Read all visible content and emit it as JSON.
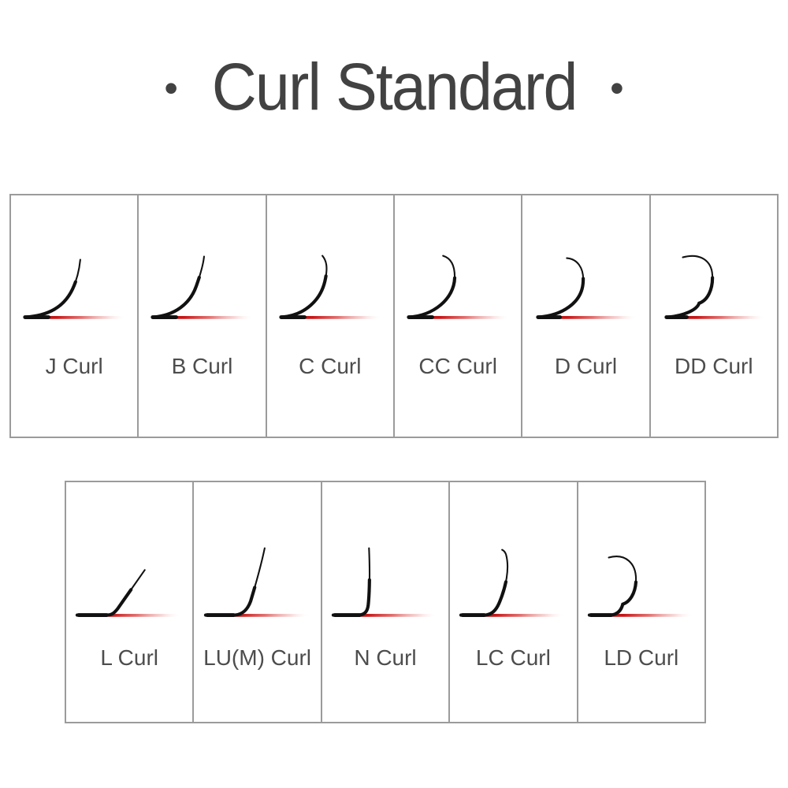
{
  "title": {
    "left_dot": "•",
    "text": "Curl Standard",
    "right_dot": "•"
  },
  "colors": {
    "title_text": "#424242",
    "label_text": "#4d4d4d",
    "card_border": "#9b9b9b",
    "lash_black": "#111111",
    "baseline_red": "#c01212",
    "background": "#ffffff"
  },
  "rows": [
    {
      "cells": [
        {
          "id": "j",
          "label": "J Curl",
          "icon": "j-curl-lash-icon"
        },
        {
          "id": "b",
          "label": "B Curl",
          "icon": "b-curl-lash-icon"
        },
        {
          "id": "c",
          "label": "C Curl",
          "icon": "c-curl-lash-icon"
        },
        {
          "id": "cc",
          "label": "CC Curl",
          "icon": "cc-curl-lash-icon"
        },
        {
          "id": "d",
          "label": "D Curl",
          "icon": "d-curl-lash-icon"
        },
        {
          "id": "dd",
          "label": "DD Curl",
          "icon": "dd-curl-lash-icon"
        }
      ]
    },
    {
      "cells": [
        {
          "id": "l",
          "label": "L Curl",
          "icon": "l-curl-lash-icon"
        },
        {
          "id": "lum",
          "label": "LU(M) Curl",
          "icon": "lum-curl-lash-icon"
        },
        {
          "id": "n",
          "label": "N Curl",
          "icon": "n-curl-lash-icon"
        },
        {
          "id": "lc",
          "label": "LC Curl",
          "icon": "lc-curl-lash-icon"
        },
        {
          "id": "ld",
          "label": "LD Curl",
          "icon": "ld-curl-lash-icon"
        }
      ]
    }
  ]
}
